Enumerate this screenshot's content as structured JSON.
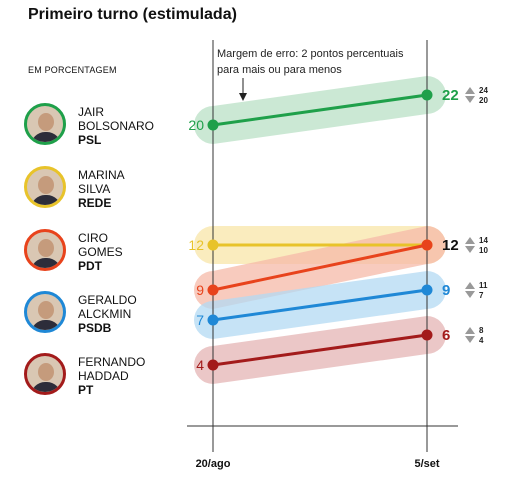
{
  "title": "Primeiro turno (estimulada)",
  "subtitle": "EM PORCENTAGEM",
  "annotation": [
    "Margem de erro: 2 pontos percentuais",
    "para mais ou para menos"
  ],
  "candidates": [
    {
      "name1": "JAIR",
      "name2": "BOLSONARO",
      "party": "PSL",
      "color": "#1fa04a"
    },
    {
      "name1": "MARINA",
      "name2": "SILVA",
      "party": "REDE",
      "color": "#e8c32a"
    },
    {
      "name1": "CIRO",
      "name2": "GOMES",
      "party": "PDT",
      "color": "#e8431c"
    },
    {
      "name1": "GERALDO",
      "name2": "ALCKMIN",
      "party": "PSDB",
      "color": "#1f88d6"
    },
    {
      "name1": "FERNANDO",
      "name2": "HADDAD",
      "party": "PT",
      "color": "#a31b1b"
    }
  ],
  "chart_data": {
    "type": "line",
    "title": "Primeiro turno (estimulada)",
    "x": [
      "20/ago",
      "5/set"
    ],
    "series": [
      {
        "name": "Bolsonaro",
        "color": "#1fa04a",
        "band": "#b9e0c6",
        "values": [
          20,
          22
        ],
        "range_end": [
          24,
          20
        ]
      },
      {
        "name": "Marina",
        "color": "#e8c32a",
        "band": "#f8e6a8",
        "values": [
          12,
          12
        ],
        "range_end": null
      },
      {
        "name": "Ciro",
        "color": "#e8431c",
        "band": "#f6b9a8",
        "values": [
          9,
          12
        ],
        "range_end": [
          14,
          10
        ]
      },
      {
        "name": "Alckmin",
        "color": "#1f88d6",
        "band": "#b3daf3",
        "values": [
          7,
          9
        ],
        "range_end": [
          11,
          7
        ]
      },
      {
        "name": "Haddad",
        "color": "#a31b1b",
        "band": "#e4b4b4",
        "values": [
          4,
          6
        ],
        "range_end": [
          8,
          4
        ]
      }
    ]
  }
}
